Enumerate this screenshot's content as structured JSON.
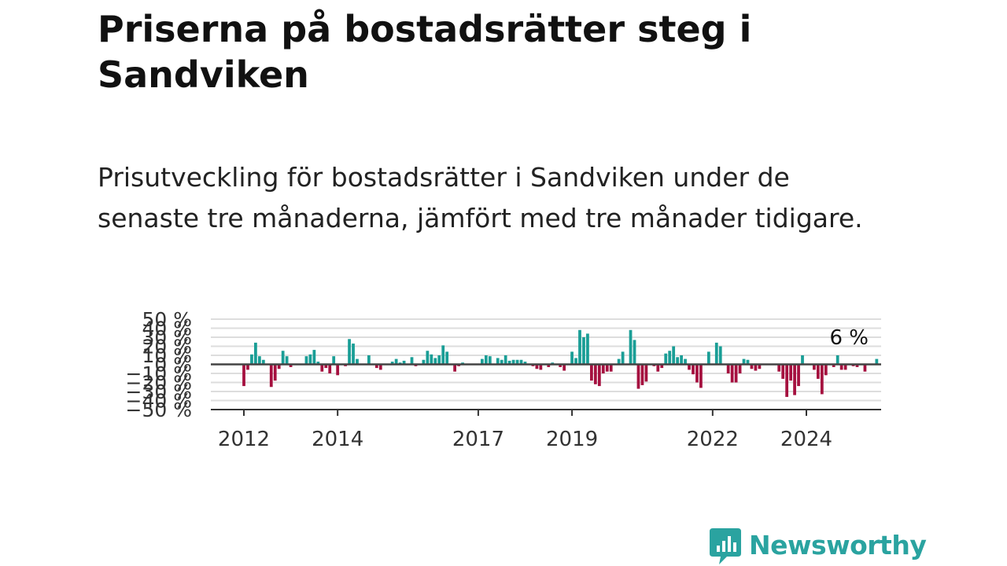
{
  "title": "Priserna på bostadsrätter steg i Sandviken",
  "subtitle": "Prisutveckling för bostadsrätter i Sandviken under de senaste tre månaderna, jämfört med tre månader tidigare.",
  "logo_text": "Newsworthy",
  "colors": {
    "positive": "#1a9e96",
    "negative": "#a5103f",
    "grid": "#dddddd",
    "axis": "#444444",
    "brand": "#2aa3a0"
  },
  "chart_data": {
    "type": "bar",
    "title": "",
    "xlabel": "",
    "ylabel": "",
    "ylim": [
      -50,
      50
    ],
    "y_ticks": [
      -50,
      -40,
      -30,
      -20,
      -10,
      0,
      10,
      20,
      30,
      40,
      50
    ],
    "y_tick_labels": [
      "−50 %",
      "−40 %",
      "−30 %",
      "−20 %",
      "−10 %",
      "0 %",
      "10 %",
      "20 %",
      "30 %",
      "40 %",
      "50 %"
    ],
    "x_ticks": [
      2012,
      2014,
      2017,
      2019,
      2022,
      2024
    ],
    "grid": true,
    "end_label": "6 %",
    "x_start": 2012.0,
    "x_step": 0.08333,
    "values": [
      -24,
      -6,
      11,
      24,
      9,
      5,
      0,
      -25,
      -18,
      -5,
      15,
      9,
      -3,
      0,
      0,
      0,
      9,
      11,
      16,
      3,
      -8,
      -4,
      -10,
      9,
      -12,
      0,
      -2,
      28,
      23,
      6,
      0,
      0,
      10,
      0,
      -4,
      -6,
      0,
      0,
      3,
      6,
      2,
      4,
      0,
      8,
      -2,
      0,
      5,
      15,
      11,
      7,
      10,
      21,
      14,
      0,
      -8,
      -2,
      2,
      0,
      0,
      0,
      0,
      6,
      10,
      9,
      0,
      7,
      5,
      10,
      4,
      5,
      5,
      5,
      3,
      0,
      -2,
      -5,
      -6,
      0,
      -3,
      2,
      0,
      -3,
      -7,
      0,
      14,
      7,
      38,
      30,
      34,
      -18,
      -22,
      -24,
      -10,
      -8,
      -8,
      0,
      6,
      14,
      0,
      38,
      27,
      -27,
      -23,
      -19,
      0,
      -2,
      -8,
      -4,
      12,
      15,
      20,
      8,
      10,
      6,
      -6,
      -11,
      -20,
      -26,
      0,
      14,
      0,
      24,
      20,
      0,
      -10,
      -20,
      -20,
      -10,
      6,
      5,
      -5,
      -7,
      -5,
      0,
      0,
      0,
      0,
      -8,
      -16,
      -36,
      -18,
      -34,
      -24,
      10,
      0,
      0,
      -6,
      -16,
      -33,
      -12,
      0,
      -3,
      10,
      -6,
      -6,
      0,
      -2,
      -3,
      0,
      -8,
      0,
      0,
      6
    ]
  }
}
